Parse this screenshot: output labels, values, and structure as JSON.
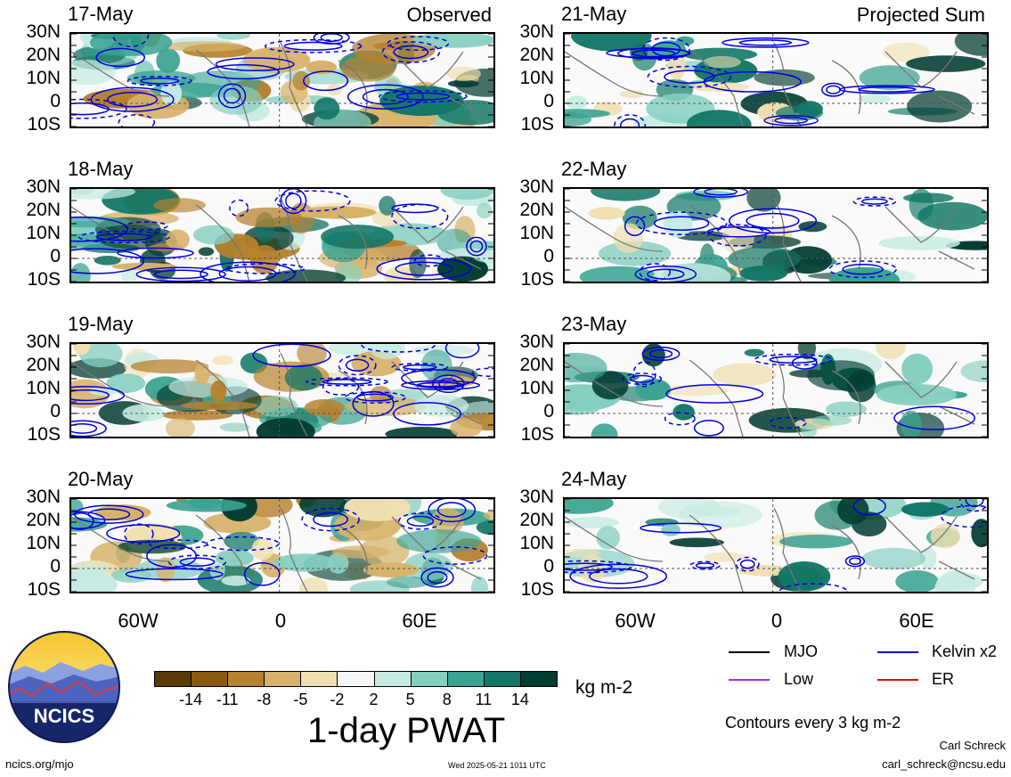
{
  "panels": [
    {
      "date": "17-May",
      "side_title": "Observed"
    },
    {
      "date": "18-May",
      "side_title": ""
    },
    {
      "date": "19-May",
      "side_title": ""
    },
    {
      "date": "20-May",
      "side_title": ""
    },
    {
      "date": "21-May",
      "side_title": "Projected Sum"
    },
    {
      "date": "22-May",
      "side_title": ""
    },
    {
      "date": "23-May",
      "side_title": ""
    },
    {
      "date": "24-May",
      "side_title": ""
    }
  ],
  "lat_labels": [
    "30N",
    "20N",
    "10N",
    "0",
    "10S"
  ],
  "lon_labels": [
    "60W",
    "0",
    "60E"
  ],
  "colorbar": {
    "tick_labels": [
      "-14",
      "-11",
      "-8",
      "-5",
      "-2",
      "2",
      "5",
      "8",
      "11",
      "14"
    ],
    "colors": [
      "#5b3a0a",
      "#8a5a13",
      "#b7822f",
      "#d7b26a",
      "#f0dfb1",
      "#f7f7f7",
      "#c6ebe3",
      "#86cfc0",
      "#3aa391",
      "#127766",
      "#033d32"
    ],
    "units": "kg m-2",
    "title": "1-day PWAT"
  },
  "legend": {
    "items": [
      {
        "label": "MJO",
        "color": "#000000"
      },
      {
        "label": "Kelvin x2",
        "color": "#0000dd"
      },
      {
        "label": "Low",
        "color": "#9b30ff"
      },
      {
        "label": "ER",
        "color": "#dd1111"
      }
    ],
    "contour_note": "Contours every 3 kg m-2"
  },
  "logo": {
    "text": "NCICS"
  },
  "footer": {
    "website": "ncics.org/mjo",
    "timestamp": "Wed 2025-05-21 1011 UTC",
    "author": "Carl Schreck",
    "email": "carl_schreck@ncsu.edu"
  }
}
